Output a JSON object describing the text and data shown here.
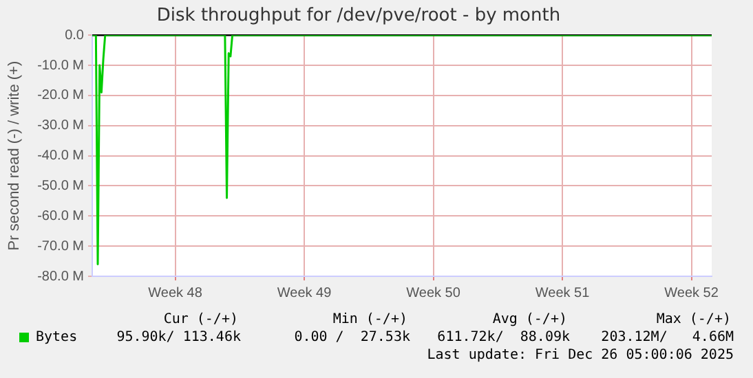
{
  "chart_data": {
    "type": "line",
    "title": "Disk throughput for /dev/pve/root - by month",
    "ylabel": "Pr second read (-) / write (+)",
    "categories": [
      null,
      null,
      null,
      null,
      null,
      null,
      null,
      null,
      null,
      null,
      null,
      null,
      null,
      null,
      null,
      null,
      null,
      null,
      null,
      null,
      null,
      null,
      null,
      null,
      null,
      null,
      null,
      null,
      null,
      null,
      null,
      null,
      null,
      null,
      null,
      null,
      null,
      null,
      null,
      null,
      null,
      null,
      null,
      null,
      null,
      "Week 48",
      null,
      null,
      null,
      null,
      null,
      null,
      null,
      null,
      null,
      null,
      null,
      null,
      null,
      null,
      null,
      null,
      null,
      null,
      null,
      null,
      null,
      null,
      null,
      null,
      null,
      null,
      null,
      null,
      null,
      null,
      null,
      null,
      null,
      null,
      null,
      null,
      null,
      null,
      null,
      null,
      null,
      null,
      null,
      null,
      null,
      null,
      null,
      null,
      null,
      null,
      null,
      null,
      null,
      null,
      null,
      null,
      null,
      null,
      null,
      null,
      null,
      null,
      null,
      null,
      null,
      null,
      null,
      null,
      null,
      "Week 49",
      null,
      null,
      null,
      null,
      null,
      null,
      null,
      null,
      null,
      null,
      null,
      null,
      null,
      null,
      null,
      null,
      null,
      null,
      null,
      null,
      null,
      null,
      null,
      null,
      null,
      null,
      null,
      null,
      null,
      null,
      null,
      null,
      null,
      null,
      null,
      null,
      null,
      null,
      null,
      null,
      null,
      null,
      null,
      null,
      null,
      null,
      null,
      null,
      null,
      null,
      null,
      null,
      null,
      null,
      null,
      null,
      null,
      null,
      null,
      null,
      null,
      null,
      null,
      null,
      null,
      null,
      null,
      null,
      null,
      "Week 50",
      null,
      null,
      null,
      null,
      null,
      null,
      null,
      null,
      null,
      null,
      null,
      null,
      null,
      null,
      null,
      null,
      null,
      null,
      null,
      null,
      null,
      null,
      null,
      null,
      null,
      null,
      null,
      null,
      null,
      null,
      null,
      null,
      null,
      null,
      null,
      null,
      null,
      null,
      null,
      null,
      null,
      null,
      null,
      null,
      null,
      null,
      null,
      null,
      null,
      null,
      null,
      null,
      null,
      null,
      null,
      null,
      null,
      null,
      null,
      null,
      null,
      null,
      null,
      null,
      null,
      null,
      null,
      null,
      null,
      "Week 51",
      null,
      null,
      null,
      null,
      null,
      null,
      null,
      null,
      null,
      null,
      null,
      null,
      null,
      null,
      null,
      null,
      null,
      null,
      null,
      null,
      null,
      null,
      null,
      null,
      null,
      null,
      null,
      null,
      null,
      null,
      null,
      null,
      null,
      null,
      null,
      null,
      null,
      null,
      null,
      null,
      null,
      null,
      null,
      null,
      null,
      null,
      null,
      null,
      null,
      null,
      null,
      null,
      null,
      null,
      null,
      null,
      null,
      null,
      null,
      null,
      null,
      null,
      null,
      null,
      null,
      null,
      null,
      null,
      null,
      "Week 52",
      null,
      null,
      null,
      null,
      null,
      null,
      null,
      null,
      null,
      null,
      null
    ],
    "series": [
      {
        "name": "Bytes",
        "color": "#00cc00",
        "values": [
          0,
          0,
          0,
          -76,
          -10,
          -19,
          -8,
          0,
          0,
          0,
          0,
          0,
          0,
          0,
          0,
          0,
          0,
          0,
          0,
          0,
          0,
          0,
          0,
          0,
          0,
          0,
          0,
          0,
          0,
          0,
          0,
          0,
          0,
          0,
          0,
          0,
          0,
          0,
          0,
          0,
          0,
          0,
          0,
          0,
          0,
          0,
          0,
          0,
          0,
          0,
          0,
          0,
          0,
          0,
          0,
          0,
          0,
          0,
          0,
          0,
          0,
          0,
          0,
          0,
          0,
          0,
          0,
          0,
          0,
          0,
          0,
          0,
          0,
          -54,
          -6,
          -7,
          0,
          0,
          0,
          0,
          0,
          0,
          0,
          0,
          0,
          0,
          0,
          0,
          0,
          0,
          0,
          0,
          0,
          0,
          0,
          0,
          0,
          0,
          0,
          0,
          0,
          0,
          0,
          0,
          0,
          0,
          0,
          0,
          0,
          0,
          0,
          0,
          0,
          0,
          0,
          0,
          0,
          0,
          0,
          0,
          0,
          0,
          0,
          0,
          0,
          0,
          0,
          0,
          0,
          0,
          0,
          0,
          0,
          0,
          0,
          0,
          0,
          0,
          0,
          0,
          0,
          0,
          0,
          0,
          0,
          0,
          0,
          0,
          0,
          0,
          0,
          0,
          0,
          0,
          0,
          0,
          0,
          0,
          0,
          0,
          0,
          0,
          0,
          0,
          0,
          0,
          0,
          0,
          0,
          0,
          0,
          0,
          0,
          0,
          0,
          0,
          0,
          0,
          0,
          0,
          0,
          0,
          0,
          0,
          0,
          0,
          0,
          0,
          0,
          0,
          0,
          0,
          0,
          0,
          0,
          0,
          0,
          0,
          0,
          0,
          0,
          0,
          0,
          0,
          0,
          0,
          0,
          0,
          0,
          0,
          0,
          0,
          0,
          0,
          0,
          0,
          0,
          0,
          0,
          0,
          0,
          0,
          0,
          0,
          0,
          0,
          0,
          0,
          0,
          0,
          0,
          0,
          0,
          0,
          0,
          0,
          0,
          0,
          0,
          0,
          0,
          0,
          0,
          0,
          0,
          0,
          0,
          0,
          0,
          0,
          0,
          0,
          0,
          0,
          0,
          0,
          0,
          0,
          0,
          0,
          0,
          0,
          0,
          0,
          0,
          0,
          0,
          0,
          0,
          0,
          0,
          0,
          0,
          0,
          0,
          0,
          0,
          0,
          0,
          0,
          0,
          0,
          0,
          0,
          0,
          0,
          0,
          0,
          0,
          0,
          0,
          0,
          0,
          0,
          0,
          0,
          0,
          0,
          0,
          0,
          0,
          0,
          0,
          0,
          0,
          0,
          0,
          0,
          0,
          0,
          0,
          0,
          0,
          0,
          0,
          0,
          0,
          0,
          0,
          0,
          0,
          0,
          0,
          0,
          0,
          0,
          0,
          0,
          0,
          0,
          0,
          0,
          0,
          0,
          0,
          0,
          0
        ]
      }
    ],
    "ylim": [
      -80,
      0
    ],
    "yticks": [
      {
        "value": -80,
        "label": "-80.0 M"
      },
      {
        "value": -70,
        "label": "-70.0 M"
      },
      {
        "value": -60,
        "label": "-60.0 M"
      },
      {
        "value": -50,
        "label": "-50.0 M"
      },
      {
        "value": -40,
        "label": "-40.0 M"
      },
      {
        "value": -30,
        "label": "-30.0 M"
      },
      {
        "value": -20,
        "label": "-20.0 M"
      },
      {
        "value": -10,
        "label": "-10.0 M"
      },
      {
        "value": 0,
        "label": "0.0"
      }
    ],
    "ref_lines": [
      {
        "axis": "y",
        "value": 0,
        "color": "#000000"
      }
    ],
    "grid": true,
    "legend": "bottom",
    "marker": "none",
    "line_style": "solid",
    "annotations": [
      "Cur (-/+)",
      "Min (-/+)",
      "Avg (-/+)",
      "Max (-/+)",
      "95.90k/ 113.46k",
      "0.00 /  27.53k",
      "611.72k/  88.09k",
      "203.12M/   4.66M",
      "Last update: Fri Dec 26 05:00:06 2025"
    ]
  }
}
